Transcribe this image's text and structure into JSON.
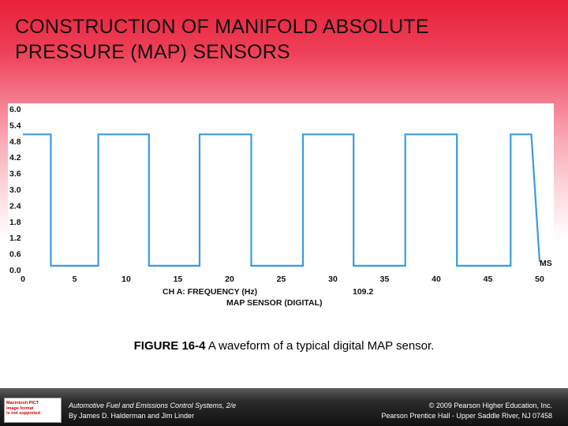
{
  "title": {
    "line1": "CONSTRUCTION OF MANIFOLD ABSOLUTE",
    "line2": "PRESSURE (MAP) SENSORS"
  },
  "chart_data": {
    "type": "line",
    "title": "",
    "xlabel": "",
    "ylabel": "",
    "x_unit": "MS",
    "x_ticks": [
      "0",
      "5",
      "10",
      "15",
      "20",
      "25",
      "30",
      "35",
      "40",
      "45",
      "50"
    ],
    "y_ticks": [
      "0.0",
      "0.6",
      "1.2",
      "1.8",
      "2.4",
      "3.0",
      "3.6",
      "4.2",
      "4.8",
      "5.4",
      "6.0"
    ],
    "xlim": [
      0,
      50
    ],
    "ylim": [
      0,
      6
    ],
    "grid": false,
    "line_color": "#3a9be0",
    "series": [
      {
        "x": [
          0,
          2.7,
          2.7,
          7.3,
          7.3,
          12.2,
          12.2,
          17.1,
          17.1,
          22.1,
          22.1,
          27.1,
          27.1,
          32.0,
          32.0,
          37.0,
          37.0,
          42.0,
          42.0,
          47.2,
          47.2,
          49.2,
          50.0
        ],
        "values": [
          5.05,
          5.05,
          0.15,
          0.15,
          5.05,
          5.05,
          0.15,
          0.15,
          5.05,
          5.05,
          0.15,
          0.15,
          5.05,
          5.05,
          0.15,
          0.15,
          5.05,
          5.05,
          0.15,
          0.15,
          5.05,
          5.05,
          0.3
        ]
      }
    ],
    "annotations": {
      "channel_label": "CH A: FREQUENCY (Hz)",
      "frequency_value": "109.2",
      "sensor_label": "MAP SENSOR (DIGITAL)"
    }
  },
  "caption": {
    "label": "FIGURE 16-4",
    "text": " A waveform of a typical digital MAP sensor."
  },
  "footer": {
    "badge_lines": [
      "Macintosh PICT",
      "image format",
      "is not supported"
    ],
    "left_line1": "Automotive Fuel and Emissions Control Systems, 2/e",
    "left_line2": "By James D. Halderman and Jim Linder",
    "right_line1": "© 2009 Pearson Higher Education, Inc.",
    "right_line2": "Pearson Prentice Hall - Upper Saddle River, NJ 07458"
  }
}
